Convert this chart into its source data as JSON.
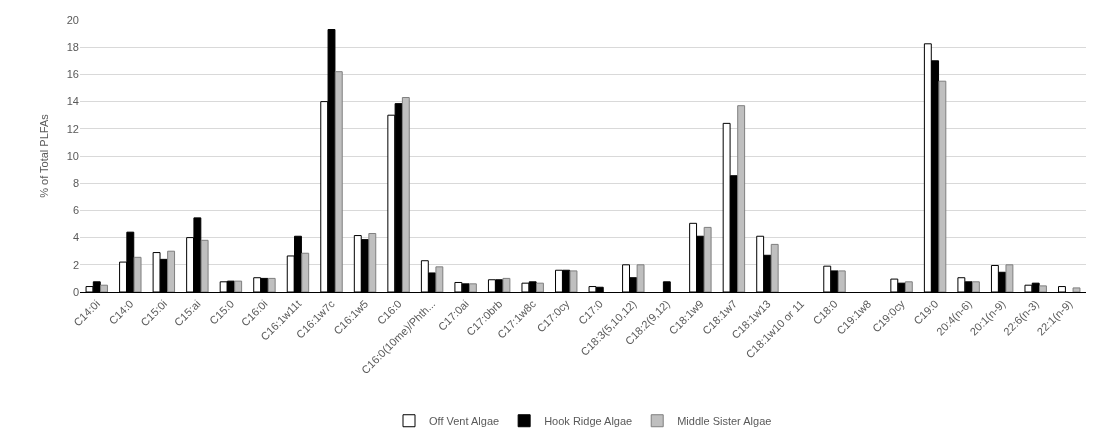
{
  "chart_data": {
    "type": "bar",
    "ylabel": "% of Total PLFAs",
    "categories": [
      "C14:0i",
      "C14:0",
      "C15:0i",
      "C15:ai",
      "C15:0",
      "C16:0i",
      "C16:1w11t",
      "C16:1w7c",
      "C16:1w5",
      "C16:0",
      "C16:0(10me)/Phth...",
      "C17:0ai",
      "C17:0brb",
      "C17:1w8c",
      "C17:0cy",
      "C17:0",
      "C18:3(5,10,12)",
      "C18:2(9,12)",
      "C18:1w9",
      "C18:1w7",
      "C18:1w13",
      "C18:1w10 or 11",
      "C18:0",
      "C19:1w8",
      "C19:0cy",
      "C19:0",
      "20:4(n-6)",
      "20:1(n-9)",
      "22:6(n-3)",
      "22:1(n-9)"
    ],
    "series": [
      {
        "name": "Off Vent Algae",
        "color": "#ffffff",
        "values": [
          0.4,
          2.2,
          2.9,
          4.0,
          0.75,
          1.05,
          2.65,
          14.0,
          4.15,
          13.0,
          2.3,
          0.7,
          0.9,
          0.65,
          1.6,
          0.4,
          2.0,
          null,
          5.05,
          12.4,
          4.1,
          null,
          1.9,
          null,
          0.95,
          18.25,
          1.05,
          1.95,
          0.5,
          0.4
        ]
      },
      {
        "name": "Hook Ridge Algae",
        "color": "#000000",
        "values": [
          0.75,
          4.4,
          2.4,
          5.45,
          0.8,
          1.0,
          4.1,
          19.3,
          3.85,
          13.85,
          1.4,
          0.6,
          0.9,
          0.75,
          1.6,
          0.35,
          1.05,
          0.75,
          4.1,
          8.55,
          2.7,
          null,
          1.55,
          null,
          0.65,
          17.0,
          0.75,
          1.45,
          0.65,
          null
        ]
      },
      {
        "name": "Middle Sister Algae",
        "color": "#bfbfbf",
        "values": [
          0.5,
          2.55,
          3.0,
          3.8,
          0.8,
          1.0,
          2.85,
          16.2,
          4.3,
          14.3,
          1.85,
          0.6,
          1.0,
          0.65,
          1.55,
          null,
          2.0,
          null,
          4.75,
          13.7,
          3.5,
          null,
          1.55,
          null,
          0.75,
          15.5,
          0.75,
          2.0,
          0.45,
          0.3
        ]
      }
    ],
    "ylim": [
      0,
      20
    ],
    "yticks": [
      0,
      2,
      4,
      6,
      8,
      10,
      12,
      14,
      16,
      18,
      20
    ],
    "grid": "y",
    "legend": "bottom"
  }
}
